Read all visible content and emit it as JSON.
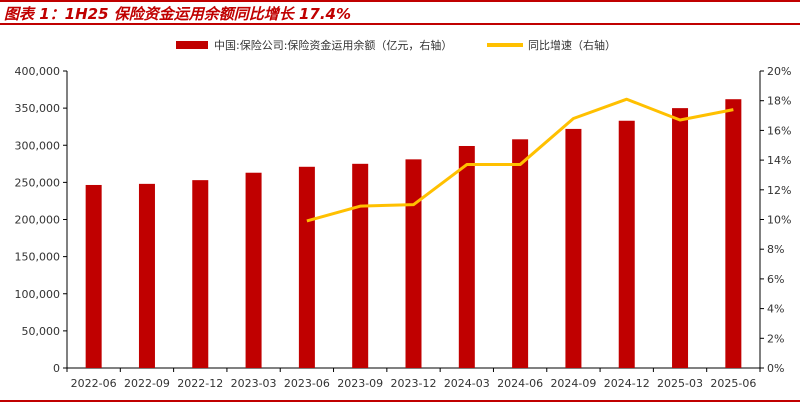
{
  "title": "图表 1：1H25 保险资金运用余额同比增长 17.4%",
  "chart_data": {
    "type": "bar+line",
    "title": "图表 1：1H25 保险资金运用余额同比增长 17.4%",
    "categories": [
      "2022-06",
      "2022-09",
      "2022-12",
      "2023-03",
      "2023-06",
      "2023-09",
      "2023-12",
      "2024-03",
      "2024-06",
      "2024-09",
      "2024-12",
      "2025-03",
      "2025-06"
    ],
    "series": [
      {
        "name": "中国:保险公司:保险资金运用余额（亿元，右轴）",
        "type": "bar",
        "axis": "left",
        "color": "#c00000",
        "values": [
          246500,
          248000,
          253000,
          263000,
          271000,
          275000,
          281000,
          299000,
          308000,
          322000,
          333000,
          350000,
          362000
        ]
      },
      {
        "name": "同比增速（右轴）",
        "type": "line",
        "axis": "right",
        "color": "#ffc000",
        "values": [
          null,
          null,
          null,
          null,
          9.9,
          10.9,
          11.0,
          13.7,
          13.7,
          16.8,
          18.1,
          16.7,
          17.4
        ]
      }
    ],
    "left_axis": {
      "ylim": [
        0,
        400000
      ],
      "ticks": [
        "0",
        "50,000",
        "100,000",
        "150,000",
        "200,000",
        "250,000",
        "300,000",
        "350,000",
        "400,000"
      ]
    },
    "right_axis": {
      "ylim": [
        0,
        20
      ],
      "ticks": [
        "0%",
        "2%",
        "4%",
        "6%",
        "8%",
        "10%",
        "12%",
        "14%",
        "16%",
        "18%",
        "20%"
      ]
    },
    "legend": "top",
    "grid": false
  }
}
